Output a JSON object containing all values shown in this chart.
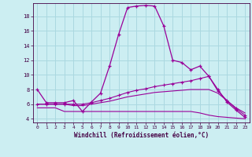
{
  "xlabel": "Windchill (Refroidissement éolien,°C)",
  "background_color": "#cceef2",
  "grid_color": "#aad8e0",
  "line_color": "#990099",
  "xlim": [
    -0.5,
    23.5
  ],
  "ylim": [
    3.5,
    19.8
  ],
  "xticks": [
    0,
    1,
    2,
    3,
    4,
    5,
    6,
    7,
    8,
    9,
    10,
    11,
    12,
    13,
    14,
    15,
    16,
    17,
    18,
    19,
    20,
    21,
    22,
    23
  ],
  "yticks": [
    4,
    6,
    8,
    10,
    12,
    14,
    16,
    18
  ],
  "line1_x": [
    0,
    1,
    2,
    3,
    4,
    5,
    6,
    7,
    8,
    9,
    10,
    11,
    12,
    13,
    14,
    15,
    16,
    17,
    18,
    19,
    20,
    21,
    22,
    23
  ],
  "line1_y": [
    8.0,
    6.2,
    6.2,
    6.2,
    6.5,
    5.0,
    6.3,
    7.5,
    11.2,
    15.5,
    19.2,
    19.4,
    19.5,
    19.4,
    16.7,
    12.0,
    11.7,
    10.7,
    11.2,
    9.8,
    8.0,
    6.3,
    5.2,
    4.2
  ],
  "line2_x": [
    0,
    1,
    2,
    3,
    4,
    5,
    6,
    7,
    8,
    9,
    10,
    11,
    12,
    13,
    14,
    15,
    16,
    17,
    18,
    19,
    20,
    21,
    22,
    23
  ],
  "line2_y": [
    6.0,
    6.0,
    6.0,
    6.0,
    6.0,
    6.0,
    6.2,
    6.5,
    6.8,
    7.2,
    7.6,
    7.9,
    8.1,
    8.4,
    8.6,
    8.8,
    9.0,
    9.2,
    9.5,
    9.8,
    7.8,
    6.5,
    5.4,
    4.5
  ],
  "line3_x": [
    0,
    1,
    2,
    3,
    4,
    5,
    6,
    7,
    8,
    9,
    10,
    11,
    12,
    13,
    14,
    15,
    16,
    17,
    18,
    19,
    20,
    21,
    22,
    23
  ],
  "line3_y": [
    6.0,
    6.0,
    6.0,
    6.0,
    5.8,
    5.8,
    6.0,
    6.2,
    6.4,
    6.7,
    7.0,
    7.2,
    7.4,
    7.6,
    7.7,
    7.8,
    7.9,
    8.0,
    8.0,
    8.0,
    7.5,
    6.5,
    5.5,
    4.8
  ],
  "line4_x": [
    0,
    1,
    2,
    3,
    4,
    5,
    6,
    7,
    8,
    9,
    10,
    11,
    12,
    13,
    14,
    15,
    16,
    17,
    18,
    19,
    20,
    21,
    22,
    23
  ],
  "line4_y": [
    5.5,
    5.5,
    5.5,
    5.0,
    5.0,
    5.0,
    5.0,
    5.0,
    5.0,
    5.0,
    5.0,
    5.0,
    5.0,
    5.0,
    5.0,
    5.0,
    5.0,
    5.0,
    4.8,
    4.5,
    4.3,
    4.2,
    4.1,
    4.0
  ]
}
